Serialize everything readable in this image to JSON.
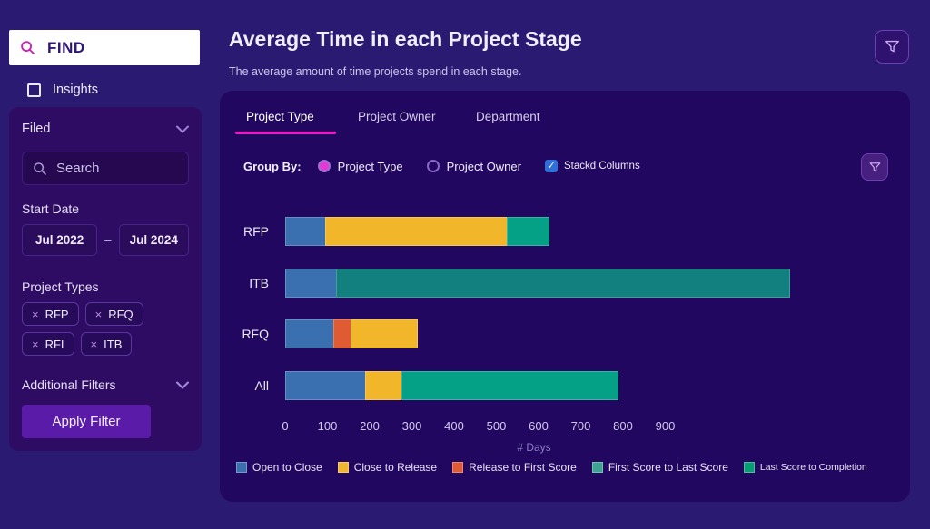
{
  "sidebar": {
    "find": {
      "label": "FIND"
    },
    "insights_label": "Insights",
    "filter_panel": {
      "title": "Filed",
      "search_placeholder": "Search",
      "start_date_label": "Start Date",
      "date_from": "Jul 2022",
      "date_separator": "–",
      "date_to": "Jul 2024",
      "project_types_label": "Project Types",
      "tag_remove_glyph": "×",
      "tags": [
        {
          "label": "RFP"
        },
        {
          "label": "RFQ"
        },
        {
          "label": "RFI"
        },
        {
          "label": "ITB"
        }
      ],
      "additional_filters_label": "Additional Filters",
      "apply_button_label": "Apply Filter"
    }
  },
  "header": {
    "title": "Average Time in each Project Stage",
    "subtitle": "The average amount of time projects spend in each stage."
  },
  "panel": {
    "tabs": [
      {
        "label": "Project Type",
        "active": true
      },
      {
        "label": "Project Owner",
        "active": false
      },
      {
        "label": "Department",
        "active": false
      }
    ],
    "group_by": {
      "label": "Group By:",
      "options": [
        {
          "label": "Project Type",
          "selected": true
        },
        {
          "label": "Project Owner",
          "selected": false
        }
      ],
      "checkbox": {
        "label": "Stackd Columns",
        "checked": true,
        "check_glyph": "✓"
      }
    }
  },
  "chart_data": {
    "type": "bar",
    "orientation": "horizontal",
    "stacked": true,
    "title": "Average Time in each Project Stage",
    "xlabel": "# Days",
    "unit": "days",
    "x_ticks": [
      0,
      100,
      200,
      300,
      400,
      500,
      600,
      700,
      800,
      900
    ],
    "xlim": [
      0,
      950
    ],
    "grid": false,
    "legend_position": "bottom",
    "categories": [
      "RFP",
      "ITB",
      "RFQ",
      "All"
    ],
    "legend": [
      {
        "label": "Open to Close",
        "color": "#3A6FB0"
      },
      {
        "label": "Close to Release",
        "color": "#F0B62E"
      },
      {
        "label": "Release to First Score",
        "color": "#E05A33"
      },
      {
        "label": "First Score to Last Score",
        "color": "#3BA390"
      },
      {
        "label": "Last Score to Completion",
        "color": "#089E74"
      }
    ],
    "bars": [
      {
        "label": "RFP",
        "segments": [
          {
            "series": "Open to Close",
            "days": 95,
            "color": "#3A6FB0"
          },
          {
            "series": "Close to Release",
            "days": 430,
            "color": "#F2B62B"
          },
          {
            "series": "Last Score to Completion",
            "days": 100,
            "color": "#05A187"
          }
        ]
      },
      {
        "label": "ITB",
        "segments": [
          {
            "series": "Open to Close",
            "days": 120,
            "color": "#3A6FB0"
          },
          {
            "series": "First Score to Last Score",
            "days": 1075,
            "color": "#12807E"
          }
        ]
      },
      {
        "label": "RFQ",
        "segments": [
          {
            "series": "Open to Close",
            "days": 115,
            "color": "#3A6FB0"
          },
          {
            "series": "Release to First Score",
            "days": 40,
            "color": "#E05A33"
          },
          {
            "series": "Close to Release",
            "days": 160,
            "color": "#F2B62B"
          }
        ]
      },
      {
        "label": "All",
        "segments": [
          {
            "series": "Open to Close",
            "days": 190,
            "color": "#3A6FB0"
          },
          {
            "series": "Close to Release",
            "days": 85,
            "color": "#F2B62B"
          },
          {
            "series": "Last Score to Completion",
            "days": 515,
            "color": "#05A187"
          }
        ]
      }
    ]
  },
  "colors": {
    "page_bg": "#2B1A72",
    "card_bg": "#21075F",
    "accent_magenta": "#E91BC5",
    "radio_selected": "#E23BD3",
    "checkbox_blue": "#2E6FD8",
    "apply_button": "#5A1BA9"
  }
}
